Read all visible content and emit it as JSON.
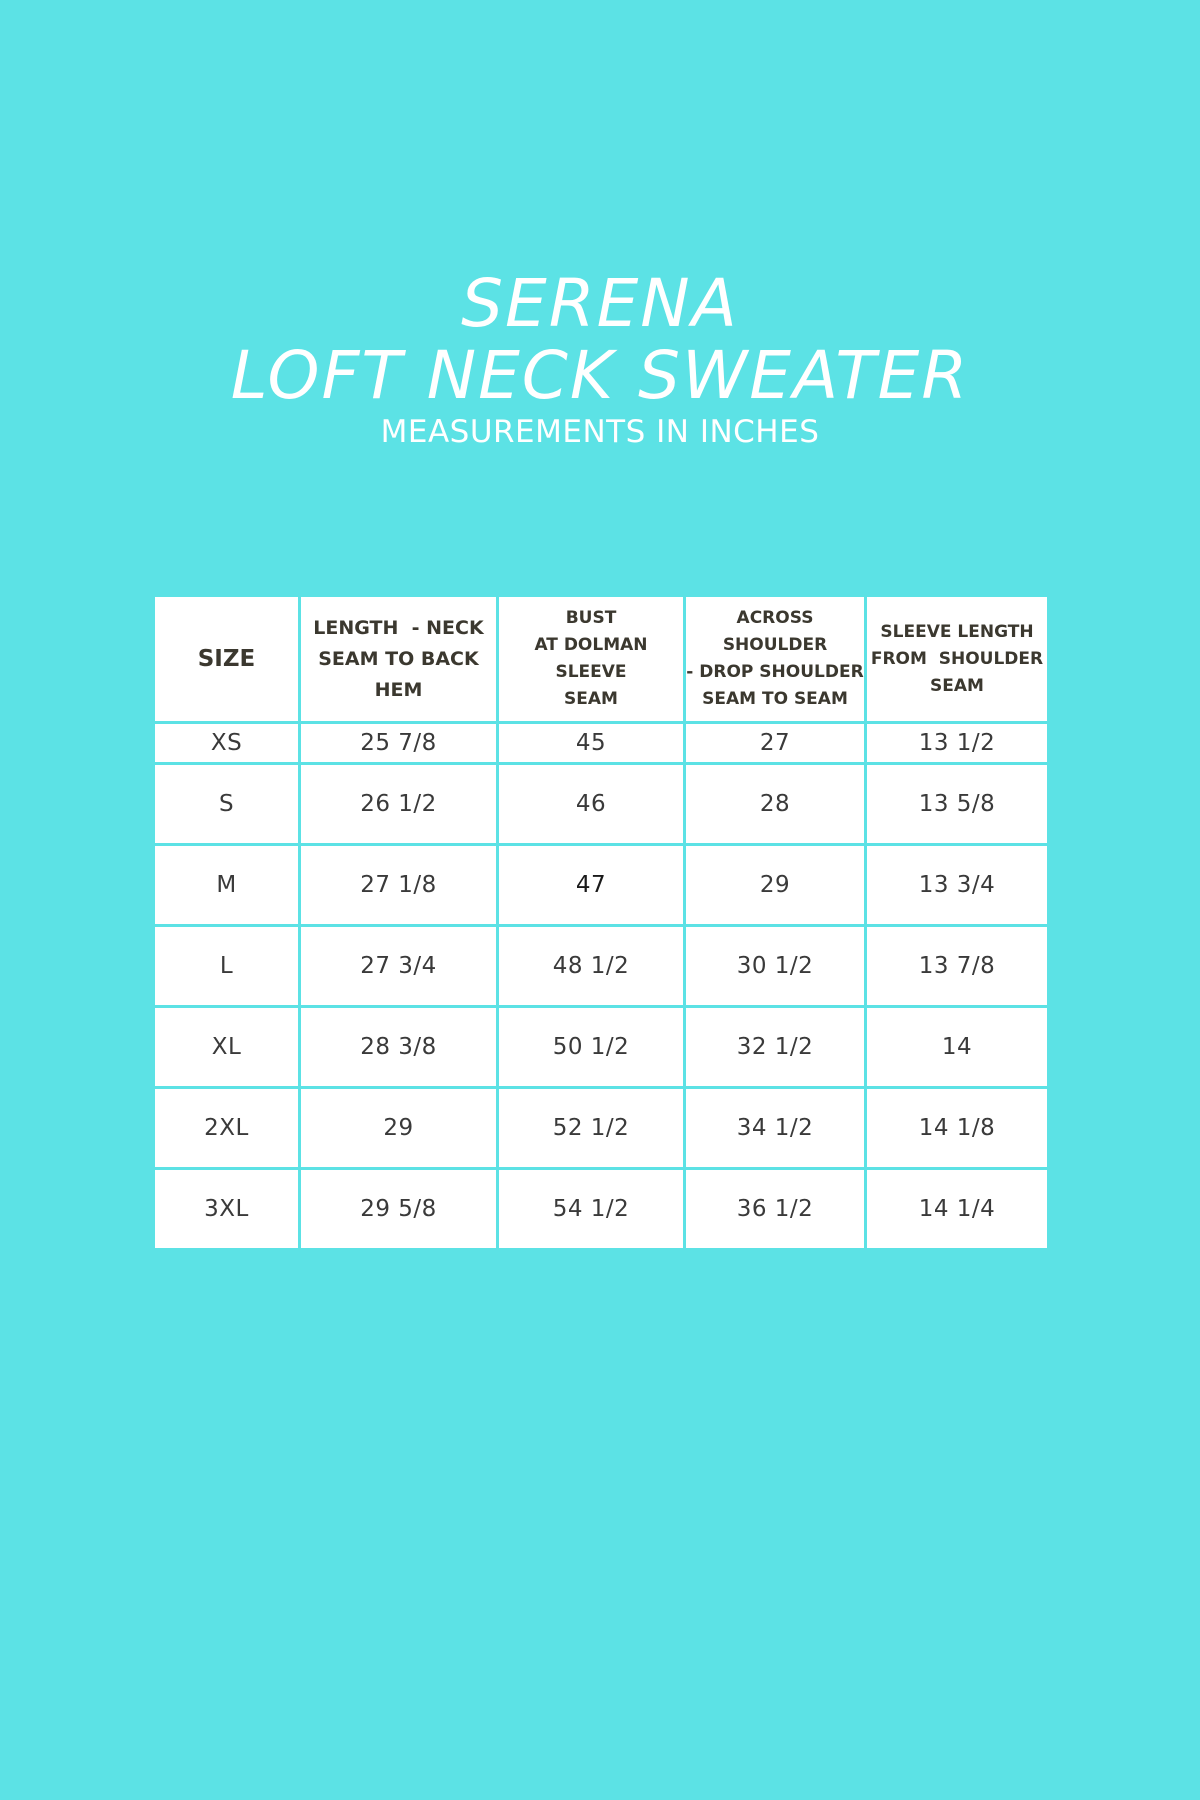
{
  "page": {
    "title_line1": "SERENA",
    "title_line2": "LOFT NECK SWEATER",
    "subtitle": "MEASUREMENTS IN INCHES"
  },
  "colors": {
    "background": "#5ce2e5",
    "cell": "#ffffff",
    "header_text": "#3b382f",
    "body_text": "#3a3a3a"
  },
  "table": {
    "headers": [
      [
        "SIZE"
      ],
      [
        "LENGTH  - NECK",
        "SEAM TO BACK",
        "HEM"
      ],
      [
        "BUST",
        "AT DOLMAN SLEEVE",
        "SEAM"
      ],
      [
        "ACROSS SHOULDER",
        "- DROP SHOULDER",
        "SEAM TO SEAM"
      ],
      [
        "SLEEVE LENGTH",
        "FROM  SHOULDER",
        "SEAM"
      ]
    ],
    "rows": [
      [
        "XS",
        "25 7/8",
        "45",
        "27",
        "13 1/2"
      ],
      [
        "S",
        "26 1/2",
        "46",
        "28",
        "13 5/8"
      ],
      [
        "M",
        "27 1/8",
        "47",
        "29",
        "13 3/4"
      ],
      [
        "L",
        "27 3/4",
        "48 1/2",
        "30 1/2",
        "13 7/8"
      ],
      [
        "XL",
        "28 3/8",
        "50 1/2",
        "32 1/2",
        "14"
      ],
      [
        "2XL",
        "29",
        "52 1/2",
        "34 1/2",
        "14 1/8"
      ],
      [
        "3XL",
        "29 5/8",
        "54 1/2",
        "36 1/2",
        "14 1/4"
      ]
    ]
  }
}
